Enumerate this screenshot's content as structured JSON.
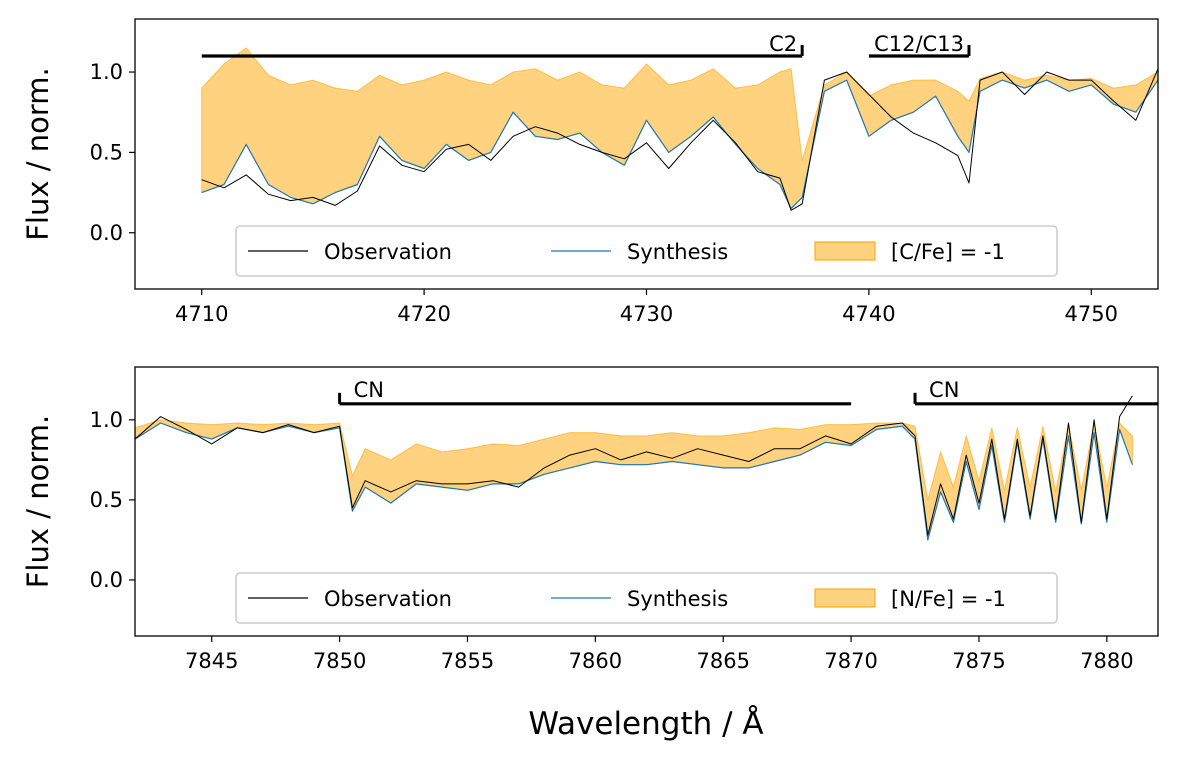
{
  "colors": {
    "observation": "#000000",
    "synthesis": "#1f77b4",
    "fill": "#ffa500",
    "fill_alpha": 0.5,
    "legend_frame": "#cccccc"
  },
  "xlabel": "Wavelength / Å",
  "chart_data": [
    {
      "type": "line",
      "ylabel": "Flux / norm.",
      "xlim": [
        4707,
        4753
      ],
      "ylim": [
        -0.35,
        1.33
      ],
      "xticks": [
        4710,
        4720,
        4730,
        4740,
        4750
      ],
      "yticks": [
        0.0,
        0.5,
        1.0
      ],
      "grid": false,
      "legend_position": "lower-center",
      "legend": [
        "Observation",
        "Synthesis",
        "[C/Fe] = -1"
      ],
      "bands": [
        {
          "label": "C2",
          "x_start": 4710,
          "x_end": 4737,
          "y": 1.1
        },
        {
          "label": "C12/C13",
          "x_start": 4740,
          "x_end": 4744.5,
          "y": 1.1
        }
      ],
      "series": [
        {
          "name": "Observation",
          "x": [
            4710,
            4711,
            4712,
            4713,
            4714,
            4715,
            4716,
            4717,
            4718,
            4719,
            4720,
            4721,
            4722,
            4723,
            4724,
            4725,
            4726,
            4727,
            4728,
            4729,
            4730,
            4731,
            4732,
            4733,
            4734,
            4735,
            4736,
            4736.5,
            4737,
            4738,
            4739,
            4740,
            4741,
            4742,
            4743,
            4744,
            4744.5,
            4745,
            4746,
            4747,
            4748,
            4749,
            4750,
            4751,
            4752,
            4753
          ],
          "y": [
            0.33,
            0.28,
            0.36,
            0.24,
            0.2,
            0.22,
            0.17,
            0.26,
            0.54,
            0.42,
            0.38,
            0.52,
            0.55,
            0.45,
            0.6,
            0.66,
            0.62,
            0.55,
            0.5,
            0.46,
            0.56,
            0.4,
            0.56,
            0.7,
            0.56,
            0.38,
            0.34,
            0.14,
            0.18,
            0.95,
            1.0,
            0.86,
            0.72,
            0.62,
            0.56,
            0.48,
            0.31,
            0.95,
            1.0,
            0.86,
            1.0,
            0.95,
            0.95,
            0.82,
            0.7,
            1.02
          ]
        },
        {
          "name": "Synthesis",
          "x": [
            4710,
            4711,
            4712,
            4713,
            4714,
            4715,
            4716,
            4717,
            4718,
            4719,
            4720,
            4721,
            4722,
            4723,
            4724,
            4725,
            4726,
            4727,
            4728,
            4729,
            4730,
            4731,
            4732,
            4733,
            4734,
            4735,
            4736,
            4736.5,
            4737,
            4738,
            4739,
            4740,
            4741,
            4742,
            4743,
            4744,
            4744.5,
            4745,
            4746,
            4747,
            4748,
            4749,
            4750,
            4751,
            4752,
            4753
          ],
          "y": [
            0.25,
            0.3,
            0.55,
            0.3,
            0.22,
            0.18,
            0.25,
            0.3,
            0.6,
            0.45,
            0.4,
            0.55,
            0.45,
            0.5,
            0.75,
            0.6,
            0.58,
            0.62,
            0.5,
            0.42,
            0.7,
            0.5,
            0.6,
            0.72,
            0.55,
            0.4,
            0.3,
            0.15,
            0.22,
            0.88,
            0.95,
            0.6,
            0.7,
            0.75,
            0.85,
            0.6,
            0.5,
            0.88,
            0.95,
            0.9,
            0.95,
            0.88,
            0.92,
            0.8,
            0.75,
            0.95
          ]
        },
        {
          "name": "[C/Fe] = -1",
          "x": [
            4710,
            4711,
            4712,
            4713,
            4714,
            4715,
            4716,
            4717,
            4718,
            4719,
            4720,
            4721,
            4722,
            4723,
            4724,
            4725,
            4726,
            4727,
            4728,
            4729,
            4730,
            4731,
            4732,
            4733,
            4734,
            4735,
            4736,
            4736.5,
            4737,
            4738,
            4739,
            4740,
            4741,
            4742,
            4743,
            4744,
            4744.5,
            4745,
            4746,
            4747,
            4748,
            4749,
            4750,
            4751,
            4752,
            4753
          ],
          "y": [
            0.9,
            1.05,
            1.15,
            0.98,
            0.92,
            0.95,
            0.9,
            0.88,
            0.98,
            0.92,
            0.95,
            1.0,
            0.95,
            0.92,
            1.0,
            1.02,
            0.95,
            1.0,
            0.92,
            0.9,
            1.05,
            0.92,
            0.95,
            1.02,
            0.9,
            0.92,
            1.0,
            1.02,
            0.45,
            0.92,
            1.0,
            0.85,
            0.92,
            0.95,
            0.95,
            0.88,
            0.82,
            0.96,
            1.0,
            0.95,
            0.98,
            0.95,
            0.96,
            0.9,
            0.92,
            1.0
          ]
        }
      ]
    },
    {
      "type": "line",
      "ylabel": "Flux / norm.",
      "xlim": [
        7842,
        7882
      ],
      "ylim": [
        -0.35,
        1.33
      ],
      "xticks": [
        7845,
        7850,
        7855,
        7860,
        7865,
        7870,
        7875,
        7880
      ],
      "yticks": [
        0.0,
        0.5,
        1.0
      ],
      "grid": false,
      "legend_position": "lower-center",
      "legend": [
        "Observation",
        "Synthesis",
        "[N/Fe] = -1"
      ],
      "bands": [
        {
          "label": "CN",
          "x_start": 7850,
          "x_end": 7870,
          "y": 1.1
        },
        {
          "label": "CN",
          "x_start": 7872.5,
          "x_end": 7882,
          "y": 1.1
        }
      ],
      "series": [
        {
          "name": "Observation",
          "x": [
            7842,
            7843,
            7844,
            7845,
            7846,
            7847,
            7848,
            7849,
            7850,
            7850.5,
            7851,
            7852,
            7853,
            7854,
            7855,
            7856,
            7857,
            7858,
            7859,
            7860,
            7861,
            7862,
            7863,
            7864,
            7865,
            7866,
            7867,
            7868,
            7869,
            7870,
            7871,
            7872,
            7872.5,
            7873,
            7873.5,
            7874,
            7874.5,
            7875,
            7875.5,
            7876,
            7876.5,
            7877,
            7877.5,
            7878,
            7878.5,
            7879,
            7879.5,
            7880,
            7880.5,
            7881
          ],
          "y": [
            0.88,
            1.02,
            0.94,
            0.85,
            0.95,
            0.92,
            0.97,
            0.92,
            0.96,
            0.45,
            0.62,
            0.55,
            0.62,
            0.6,
            0.6,
            0.62,
            0.58,
            0.7,
            0.78,
            0.82,
            0.75,
            0.8,
            0.76,
            0.82,
            0.78,
            0.74,
            0.82,
            0.82,
            0.9,
            0.85,
            0.96,
            0.98,
            0.9,
            0.28,
            0.6,
            0.38,
            0.78,
            0.48,
            0.88,
            0.38,
            0.88,
            0.4,
            0.9,
            0.38,
            0.98,
            0.36,
            1.0,
            0.38,
            1.02,
            1.15
          ]
        },
        {
          "name": "Synthesis",
          "x": [
            7842,
            7843,
            7844,
            7845,
            7846,
            7847,
            7848,
            7849,
            7850,
            7850.5,
            7851,
            7852,
            7853,
            7854,
            7855,
            7856,
            7857,
            7858,
            7859,
            7860,
            7861,
            7862,
            7863,
            7864,
            7865,
            7866,
            7867,
            7868,
            7869,
            7870,
            7871,
            7872,
            7872.5,
            7873,
            7873.5,
            7874,
            7874.5,
            7875,
            7875.5,
            7876,
            7876.5,
            7877,
            7877.5,
            7878,
            7878.5,
            7879,
            7879.5,
            7880,
            7880.5,
            7881
          ],
          "y": [
            0.88,
            0.98,
            0.92,
            0.88,
            0.95,
            0.92,
            0.96,
            0.92,
            0.95,
            0.43,
            0.58,
            0.48,
            0.6,
            0.58,
            0.56,
            0.6,
            0.6,
            0.66,
            0.7,
            0.74,
            0.72,
            0.72,
            0.74,
            0.72,
            0.7,
            0.7,
            0.74,
            0.78,
            0.86,
            0.84,
            0.94,
            0.96,
            0.88,
            0.25,
            0.55,
            0.36,
            0.74,
            0.44,
            0.84,
            0.36,
            0.86,
            0.38,
            0.88,
            0.36,
            0.9,
            0.35,
            0.92,
            0.36,
            0.94,
            0.72
          ]
        },
        {
          "name": "[N/Fe] = -1",
          "x": [
            7842,
            7843,
            7844,
            7845,
            7846,
            7847,
            7848,
            7849,
            7850,
            7850.5,
            7851,
            7852,
            7853,
            7854,
            7855,
            7856,
            7857,
            7858,
            7859,
            7860,
            7861,
            7862,
            7863,
            7864,
            7865,
            7866,
            7867,
            7868,
            7869,
            7870,
            7871,
            7872,
            7872.5,
            7873,
            7873.5,
            7874,
            7874.5,
            7875,
            7875.5,
            7876,
            7876.5,
            7877,
            7877.5,
            7878,
            7878.5,
            7879,
            7879.5,
            7880,
            7880.5,
            7881
          ],
          "y": [
            0.95,
            1.0,
            0.98,
            0.97,
            0.98,
            0.97,
            0.98,
            0.97,
            0.98,
            0.65,
            0.82,
            0.75,
            0.85,
            0.8,
            0.82,
            0.85,
            0.84,
            0.88,
            0.92,
            0.92,
            0.9,
            0.9,
            0.92,
            0.9,
            0.9,
            0.92,
            0.95,
            0.94,
            0.97,
            0.97,
            0.98,
            0.98,
            0.96,
            0.5,
            0.8,
            0.58,
            0.9,
            0.62,
            0.95,
            0.56,
            0.95,
            0.58,
            0.96,
            0.55,
            0.97,
            0.56,
            0.98,
            0.58,
            0.98,
            0.9
          ]
        }
      ]
    }
  ]
}
